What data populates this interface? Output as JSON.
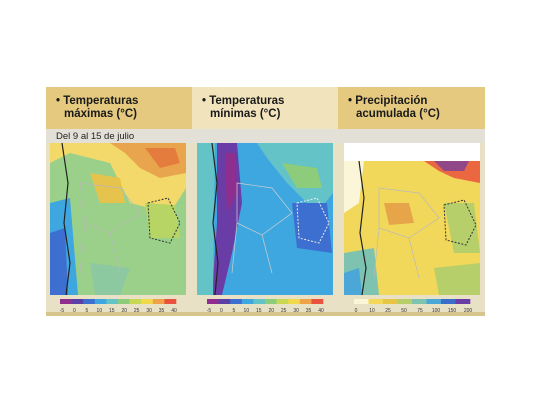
{
  "panels": [
    {
      "title_line1": "Temperaturas",
      "title_line2": "máximas (°C)"
    },
    {
      "title_line1": "Temperaturas",
      "title_line2": "mínimas (°C)"
    },
    {
      "title_line1": "Precipitación",
      "title_line2": "acumulada (°C)"
    }
  ],
  "date_range": "Del 9 al 15 de julio",
  "legends": [
    {
      "ticks": [
        "-5",
        "0",
        "5",
        "10",
        "15",
        "20",
        "25",
        "30",
        "35",
        "40"
      ],
      "colors": [
        "#8e2f8f",
        "#5a3fa6",
        "#3d6fd1",
        "#3fa7e0",
        "#63c3c7",
        "#8ccc7a",
        "#c8d855",
        "#f0d94a",
        "#f0a24a",
        "#e9533d"
      ]
    },
    {
      "ticks": [
        "-5",
        "0",
        "5",
        "10",
        "15",
        "20",
        "25",
        "30",
        "35",
        "40"
      ],
      "colors": [
        "#8e2f8f",
        "#5a3fa6",
        "#3d6fd1",
        "#3fa7e0",
        "#63c3c7",
        "#8ccc7a",
        "#c8d855",
        "#f0d94a",
        "#f0a24a",
        "#e9533d"
      ]
    },
    {
      "ticks": [
        "0",
        "10",
        "25",
        "50",
        "75",
        "100",
        "150",
        "200"
      ],
      "colors": [
        "#fbf6d8",
        "#f3d85a",
        "#e7c545",
        "#b6cf6a",
        "#7ec3b0",
        "#4aa7d8",
        "#3b6ec9",
        "#6a3ca6"
      ]
    }
  ]
}
